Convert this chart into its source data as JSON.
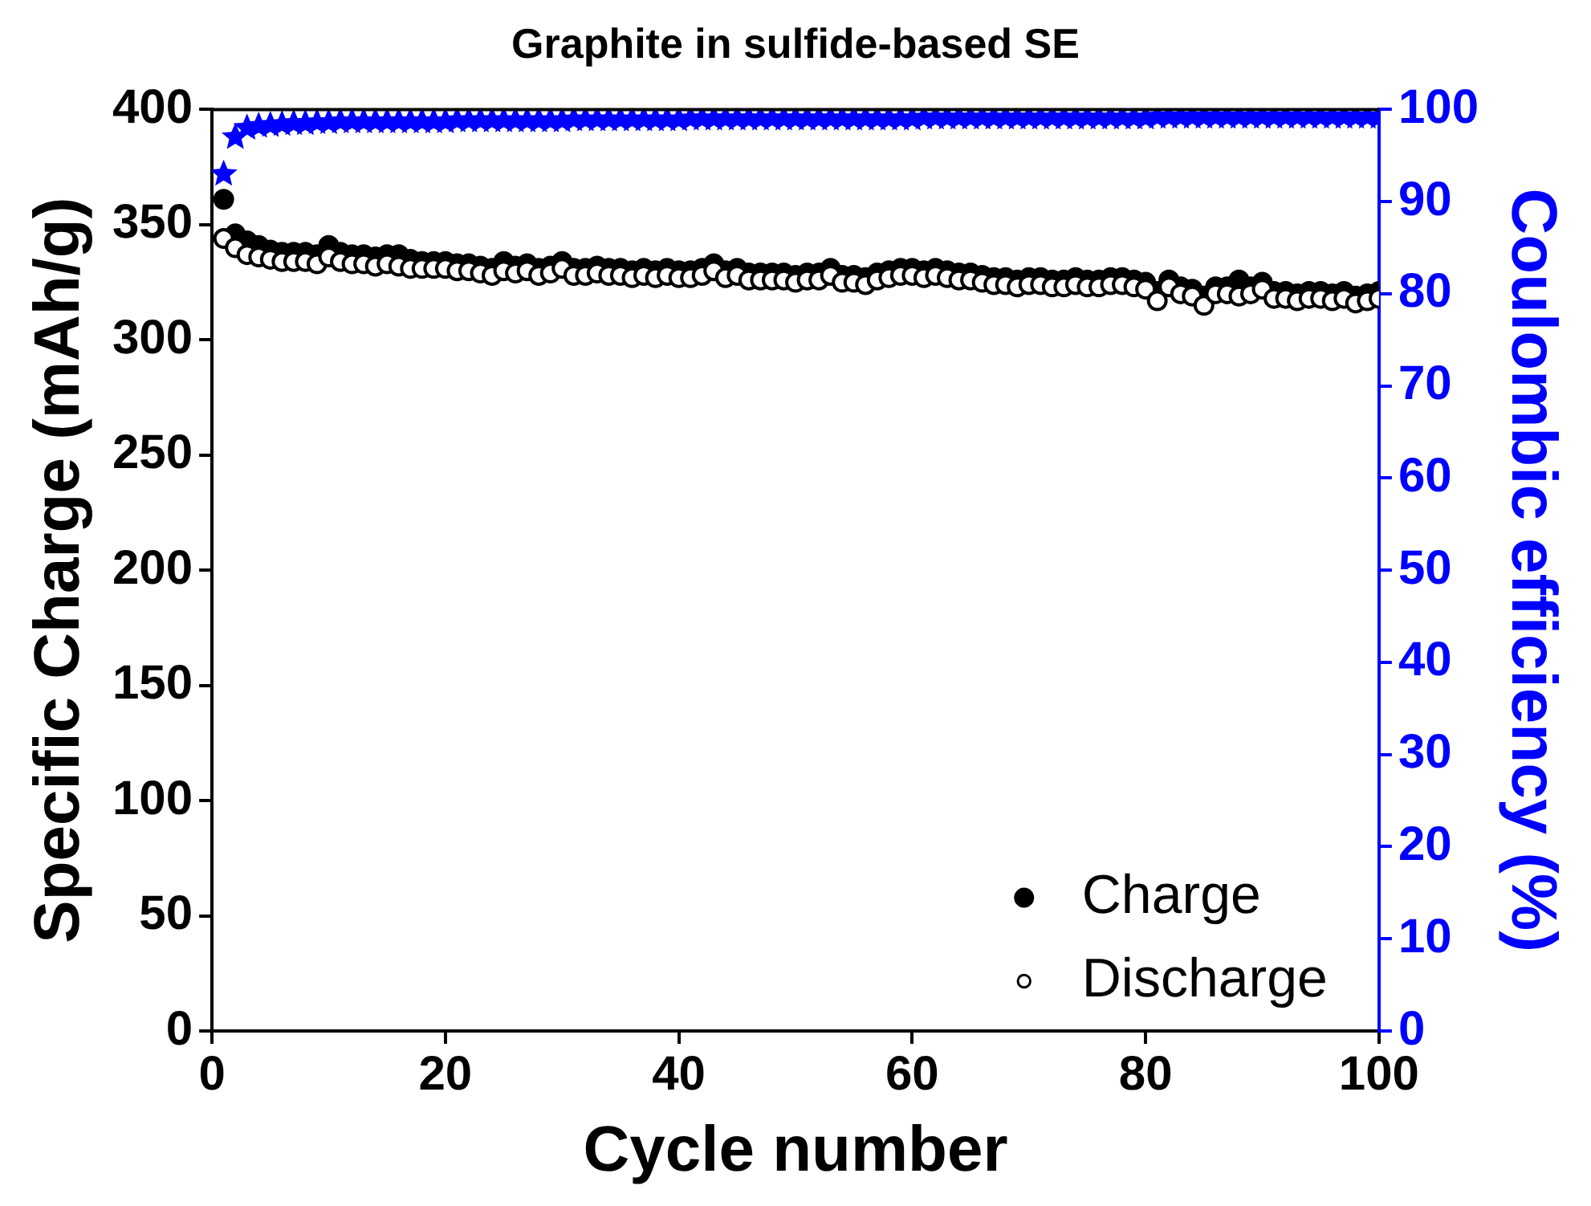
{
  "chart_data": {
    "type": "scatter",
    "title": "Graphite in sulfide-based SE",
    "xlabel": "Cycle number",
    "ylabel": "Specific Charge (mAh/g)",
    "y2label": "Coulombic efficiency (%)",
    "x": [
      1,
      2,
      3,
      4,
      5,
      6,
      7,
      8,
      9,
      10,
      11,
      12,
      13,
      14,
      15,
      16,
      17,
      18,
      19,
      20,
      21,
      22,
      23,
      24,
      25,
      26,
      27,
      28,
      29,
      30,
      31,
      32,
      33,
      34,
      35,
      36,
      37,
      38,
      39,
      40,
      41,
      42,
      43,
      44,
      45,
      46,
      47,
      48,
      49,
      50,
      51,
      52,
      53,
      54,
      55,
      56,
      57,
      58,
      59,
      60,
      61,
      62,
      63,
      64,
      65,
      66,
      67,
      68,
      69,
      70,
      71,
      72,
      73,
      74,
      75,
      76,
      77,
      78,
      79,
      80,
      81,
      82,
      83,
      84,
      85,
      86,
      87,
      88,
      89,
      90,
      91,
      92,
      93,
      94,
      95,
      96,
      97,
      98,
      99,
      100
    ],
    "series": [
      {
        "name": "Charge",
        "color": "#000000",
        "marker": "circle",
        "values": [
          361,
          346,
          343,
          341,
          339,
          338,
          338,
          338,
          337,
          341,
          338,
          337,
          337,
          336,
          337,
          337,
          335,
          334,
          334,
          334,
          333,
          333,
          332,
          331,
          334,
          332,
          333,
          331,
          332,
          334,
          331,
          331,
          332,
          331,
          331,
          330,
          331,
          330,
          331,
          330,
          330,
          331,
          333,
          330,
          331,
          329,
          329,
          329,
          329,
          328,
          329,
          329,
          331,
          328,
          328,
          327,
          329,
          330,
          331,
          331,
          330,
          331,
          330,
          329,
          329,
          328,
          327,
          327,
          326,
          327,
          327,
          326,
          326,
          327,
          326,
          326,
          327,
          327,
          326,
          325,
          321,
          326,
          323,
          322,
          319,
          323,
          323,
          326,
          323,
          325,
          321,
          321,
          320,
          321,
          321,
          320,
          321,
          319,
          320,
          321
        ]
      },
      {
        "name": "Discharge",
        "color": "#ffffff",
        "marker": "circle",
        "values": [
          344,
          340,
          337,
          336,
          335,
          334,
          334,
          334,
          333,
          336,
          334,
          333,
          333,
          332,
          333,
          332,
          331,
          331,
          331,
          331,
          330,
          330,
          329,
          328,
          330,
          329,
          330,
          328,
          329,
          331,
          328,
          328,
          329,
          328,
          328,
          327,
          328,
          327,
          328,
          327,
          327,
          328,
          330,
          327,
          328,
          326,
          326,
          326,
          326,
          325,
          326,
          326,
          328,
          325,
          325,
          324,
          326,
          327,
          328,
          328,
          327,
          328,
          327,
          326,
          326,
          325,
          324,
          324,
          323,
          324,
          324,
          323,
          323,
          324,
          323,
          323,
          324,
          324,
          323,
          322,
          317,
          323,
          320,
          319,
          315,
          320,
          320,
          319,
          320,
          322,
          318,
          318,
          317,
          318,
          318,
          317,
          318,
          316,
          317,
          318
        ]
      },
      {
        "color": "#0000ff",
        "marker": "star",
        "axis": "y2",
        "values": [
          93,
          97,
          98,
          98.2,
          98.3,
          98.4,
          98.5,
          98.5,
          98.6,
          98.6,
          98.7,
          98.7,
          98.7,
          98.7,
          98.7,
          98.7,
          98.7,
          98.7,
          98.7,
          98.7,
          98.8,
          98.8,
          98.8,
          98.8,
          98.8,
          98.8,
          98.8,
          98.8,
          98.8,
          98.8,
          98.9,
          98.9,
          98.9,
          98.9,
          98.9,
          98.9,
          98.9,
          98.9,
          98.9,
          98.9,
          99,
          99,
          99,
          99,
          99,
          99,
          99,
          99,
          99,
          99,
          99,
          99,
          99,
          99,
          99,
          99,
          99,
          99,
          99,
          99,
          99.1,
          99.1,
          99.1,
          99.1,
          99.1,
          99.1,
          99.1,
          99.1,
          99.1,
          99.1,
          99.1,
          99.1,
          99.1,
          99.1,
          99.1,
          99.1,
          99.1,
          99.1,
          99.1,
          99.1,
          99.2,
          99.2,
          99.2,
          99.2,
          99.2,
          99.2,
          99.2,
          99.2,
          99.2,
          99.2,
          99.2,
          99.2,
          99.2,
          99.2,
          99.2,
          99.2,
          99.2,
          99.2,
          99.2,
          99.2
        ]
      }
    ],
    "xlim": [
      0,
      100
    ],
    "xticks": [
      0,
      20,
      40,
      60,
      80,
      100
    ],
    "ylim": [
      0,
      400
    ],
    "yticks": [
      0,
      50,
      100,
      150,
      200,
      250,
      300,
      350,
      400
    ],
    "y2lim": [
      0,
      100
    ],
    "y2ticks": [
      0,
      10,
      20,
      30,
      40,
      50,
      60,
      70,
      80,
      90,
      100
    ],
    "grid": false,
    "legend": "bottom right"
  }
}
